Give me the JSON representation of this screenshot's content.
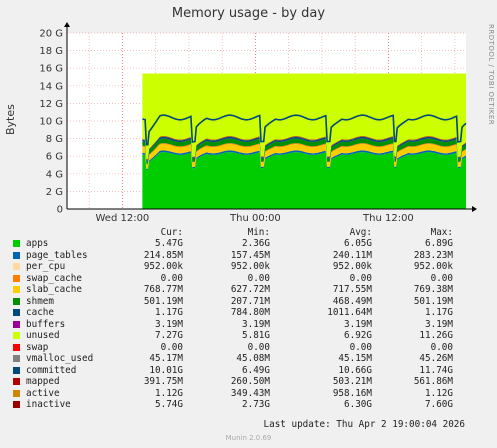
{
  "chart_data": {
    "type": "area",
    "title": "Memory usage - by day",
    "ylabel": "Bytes",
    "side_label": "RRDTOOL / TOBI OETIKER",
    "y_ticks": [
      "0",
      "2 G",
      "4 G",
      "6 G",
      "8 G",
      "10 G",
      "12 G",
      "14 G",
      "16 G",
      "18 G",
      "20 G"
    ],
    "ylim": [
      0,
      20
    ],
    "x_ticks": [
      "Wed 12:00",
      "Thu 00:00",
      "Thu 12:00"
    ],
    "x_tick_hours": [
      12,
      24,
      36
    ],
    "x_range_hours": [
      7,
      43
    ],
    "data_start_hour": 13.8,
    "stack_series": [
      {
        "name": "apps",
        "color": "#00cc00",
        "level": 6.3
      },
      {
        "name": "page_tables",
        "color": "#0066b3",
        "level": 6.5
      },
      {
        "name": "slab_cache",
        "color": "#ffcc00",
        "level": 7.2
      },
      {
        "name": "swap_cache",
        "color": "#ff8000",
        "level": 7.3
      },
      {
        "name": "shmem",
        "color": "#008f00",
        "level": 7.8
      },
      {
        "name": "cache",
        "color": "#00487d",
        "level": 8.0
      },
      {
        "name": "buffers",
        "color": "#b35a00",
        "level": 8.1
      },
      {
        "name": "unused",
        "color": "#ccff00",
        "level": 15.4
      }
    ],
    "line_series": [
      {
        "name": "committed",
        "color": "#00487d",
        "level": 10.4
      },
      {
        "name": "swap",
        "color": "#ff0000",
        "level": 0
      }
    ],
    "columns": [
      "Cur:",
      "Min:",
      "Avg:",
      "Max:"
    ],
    "legend": [
      {
        "name": "apps",
        "color": "#00cc00",
        "cur": "5.47G",
        "min": "2.36G",
        "avg": "6.05G",
        "max": "6.89G"
      },
      {
        "name": "page_tables",
        "color": "#0066b3",
        "cur": "214.85M",
        "min": "157.45M",
        "avg": "240.11M",
        "max": "283.23M"
      },
      {
        "name": "per_cpu",
        "color": "#ffd9a0",
        "cur": "952.00k",
        "min": "952.00k",
        "avg": "952.00k",
        "max": "952.00k"
      },
      {
        "name": "swap_cache",
        "color": "#ff8000",
        "cur": "0.00",
        "min": "0.00",
        "avg": "0.00",
        "max": "0.00"
      },
      {
        "name": "slab_cache",
        "color": "#ffcc00",
        "cur": "768.77M",
        "min": "627.72M",
        "avg": "717.55M",
        "max": "769.38M"
      },
      {
        "name": "shmem",
        "color": "#008f00",
        "cur": "501.19M",
        "min": "207.71M",
        "avg": "468.49M",
        "max": "501.19M"
      },
      {
        "name": "cache",
        "color": "#00487d",
        "cur": "1.17G",
        "min": "784.80M",
        "avg": "1011.64M",
        "max": "1.17G"
      },
      {
        "name": "buffers",
        "color": "#990099",
        "cur": "3.19M",
        "min": "3.19M",
        "avg": "3.19M",
        "max": "3.19M"
      },
      {
        "name": "unused",
        "color": "#ccff00",
        "cur": "7.27G",
        "min": "5.81G",
        "avg": "6.92G",
        "max": "11.26G"
      },
      {
        "name": "swap",
        "color": "#ff0000",
        "cur": "0.00",
        "min": "0.00",
        "avg": "0.00",
        "max": "0.00"
      },
      {
        "name": "vmalloc_used",
        "color": "#808080",
        "cur": "45.17M",
        "min": "45.08M",
        "avg": "45.15M",
        "max": "45.26M"
      },
      {
        "name": "committed",
        "color": "#00487d",
        "cur": "10.01G",
        "min": "6.49G",
        "avg": "10.66G",
        "max": "11.74G"
      },
      {
        "name": "mapped",
        "color": "#b30000",
        "cur": "391.75M",
        "min": "260.50M",
        "avg": "503.21M",
        "max": "561.86M"
      },
      {
        "name": "active",
        "color": "#cc8800",
        "cur": "1.12G",
        "min": "349.43M",
        "avg": "958.16M",
        "max": "1.12G"
      },
      {
        "name": "inactive",
        "color": "#990000",
        "cur": "5.74G",
        "min": "2.73G",
        "avg": "6.30G",
        "max": "7.60G"
      }
    ]
  },
  "footer": {
    "last_update": "Last update: Thu Apr  2 19:00:04 2026",
    "version": "Munin 2.0.69"
  }
}
